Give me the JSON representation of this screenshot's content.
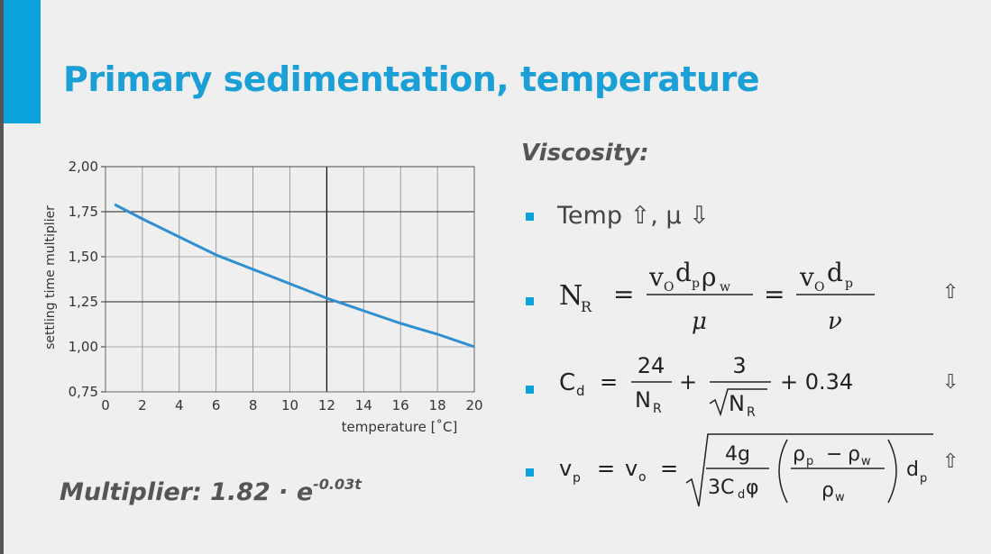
{
  "slide": {
    "title": "Primary sedimentation, temperature",
    "viscosity_heading": "Viscosity:",
    "temp_text": "Temp",
    "mu_text": ", μ",
    "multiplier_text": "Multiplier: 1.82 · e",
    "multiplier_exp": "-0.03t",
    "arrows": {
      "up": "⇧",
      "down": "⇩"
    },
    "eq_nr": {
      "lhs": "N",
      "lhs_sub": "R",
      "num1": "v",
      "num1_sub1": "O",
      "num1_d": "d",
      "num1_sub2": "p",
      "num1_rho": "ρ",
      "num1_sub3": "w",
      "den1": "μ",
      "num2": "v",
      "num2_sub1": "O",
      "num2_d": "d",
      "num2_sub2": "p",
      "den2": "ν",
      "eq": "="
    },
    "eq_cd": {
      "lhs": "C",
      "lhs_sub": "d",
      "t1_num": "24",
      "t1_den": "N",
      "t1_den_sub": "R",
      "plus": "+",
      "t2_num": "3",
      "t2_den": "N",
      "t2_den_sub": "R",
      "const": "+ 0.34",
      "eq": "="
    },
    "eq_vp": {
      "lhs": "v",
      "lhs_sub": "p",
      "mid": "v",
      "mid_sub": "o",
      "frac_num": "4g",
      "frac_den": "3C",
      "frac_den_sub": "d",
      "frac_den_phi": "φ",
      "in_num": "ρ",
      "in_num_sub": "p",
      "in_minus": "−",
      "in_num2": "ρ",
      "in_num2_sub": "w",
      "in_den": "ρ",
      "in_den_sub": "w",
      "tail": "d",
      "tail_sub": "p",
      "eq": "="
    }
  },
  "chart_data": {
    "type": "line",
    "xlabel": "temperature [˚C]",
    "ylabel": "settling time multiplier",
    "xlim": [
      0,
      20
    ],
    "ylim": [
      0.75,
      2.0
    ],
    "x_ticks": [
      "0",
      "2",
      "4",
      "6",
      "8",
      "10",
      "12",
      "14",
      "16",
      "18",
      "20"
    ],
    "y_ticks": [
      "0,75",
      "1,00",
      "1,25",
      "1,50",
      "1,75",
      "2,00"
    ],
    "grid": true,
    "x": [
      0.5,
      2,
      4,
      6,
      8,
      10,
      12,
      14,
      16,
      18,
      20
    ],
    "values": [
      1.79,
      1.71,
      1.61,
      1.51,
      1.43,
      1.35,
      1.27,
      1.2,
      1.13,
      1.07,
      1.0
    ],
    "line_color": "#2e8fd1"
  }
}
